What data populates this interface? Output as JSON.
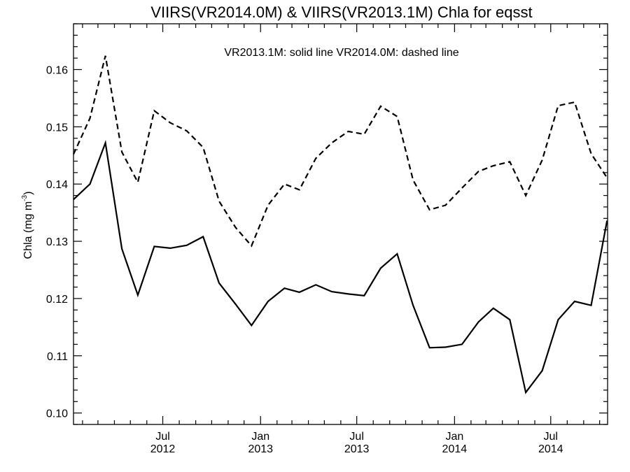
{
  "chart_data": {
    "type": "line",
    "title": "VIIRS(VR2014.0M) & VIIRS(VR2013.1M)  Chla for eqsst",
    "ylabel": "Chla (mg m",
    "ylabel_sup": "-3",
    "ylabel_close": ")",
    "legend_text": "VR2013.1M: solid line   VR2014.0M: dashed line",
    "legend_placement": "top-center",
    "grid": false,
    "ylim": [
      0.098,
      0.168
    ],
    "xlim": [
      "2012-01-15",
      "2014-10-16"
    ],
    "y_ticks": [
      {
        "value": 0.1,
        "label": "0.10"
      },
      {
        "value": 0.11,
        "label": "0.11"
      },
      {
        "value": 0.12,
        "label": "0.12"
      },
      {
        "value": 0.13,
        "label": "0.13"
      },
      {
        "value": 0.14,
        "label": "0.14"
      },
      {
        "value": 0.15,
        "label": "0.15"
      },
      {
        "value": 0.16,
        "label": "0.16"
      }
    ],
    "x_ticks": [
      {
        "date": "2012-07-01",
        "month": "Jul",
        "year": "2012"
      },
      {
        "date": "2013-01-01",
        "month": "Jan",
        "year": "2013"
      },
      {
        "date": "2013-07-01",
        "month": "Jul",
        "year": "2013"
      },
      {
        "date": "2014-01-01",
        "month": "Jan",
        "year": "2014"
      },
      {
        "date": "2014-07-01",
        "month": "Jul",
        "year": "2014"
      }
    ],
    "x": [
      "2012-01-15",
      "2012-02-15",
      "2012-03-15",
      "2012-04-15",
      "2012-05-15",
      "2012-06-15",
      "2012-07-15",
      "2012-08-15",
      "2012-09-15",
      "2012-10-15",
      "2012-11-15",
      "2012-12-15",
      "2013-01-15",
      "2013-02-15",
      "2013-03-15",
      "2013-04-15",
      "2013-05-15",
      "2013-06-15",
      "2013-07-15",
      "2013-08-15",
      "2013-09-15",
      "2013-10-15",
      "2013-11-15",
      "2013-12-15",
      "2014-01-15",
      "2014-02-15",
      "2014-03-15",
      "2014-04-15",
      "2014-05-15",
      "2014-06-15",
      "2014-07-15",
      "2014-08-15",
      "2014-09-15",
      "2014-10-15"
    ],
    "series": [
      {
        "key": "VR2013.1M",
        "style": "solid",
        "values": [
          0.1373,
          0.14,
          0.1472,
          0.1287,
          0.1206,
          0.1291,
          0.1288,
          0.1293,
          0.1308,
          0.1227,
          0.119,
          0.1153,
          0.1195,
          0.1218,
          0.1211,
          0.1224,
          0.1212,
          0.1208,
          0.1205,
          0.1253,
          0.1278,
          0.1188,
          0.1114,
          0.1115,
          0.112,
          0.1159,
          0.1183,
          0.1163,
          0.1036,
          0.1074,
          0.1163,
          0.1195,
          0.1188,
          0.1336
        ]
      },
      {
        "key": "VR2014.0M",
        "style": "dashed",
        "values": [
          0.1452,
          0.1515,
          0.1624,
          0.1456,
          0.1403,
          0.1528,
          0.1507,
          0.1493,
          0.1464,
          0.137,
          0.1324,
          0.1292,
          0.1363,
          0.14,
          0.139,
          0.1445,
          0.1472,
          0.1492,
          0.1487,
          0.1536,
          0.1518,
          0.1407,
          0.1355,
          0.1363,
          0.1393,
          0.1422,
          0.1432,
          0.1439,
          0.138,
          0.1442,
          0.1537,
          0.1543,
          0.1453,
          0.1411
        ]
      }
    ]
  }
}
